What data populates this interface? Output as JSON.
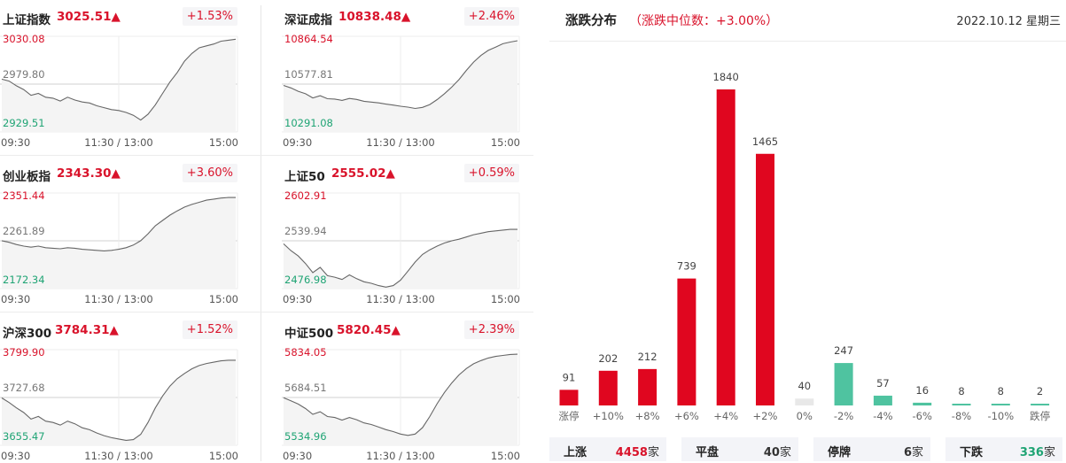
{
  "indices": [
    {
      "name": "上证指数",
      "value": "3025.51▲",
      "change": "+1.53%",
      "high": "3030.08",
      "mid": "2979.80",
      "low": "2929.51",
      "t_start": "09:30",
      "t_mid": "11:30 / 13:00",
      "t_end": "15:00"
    },
    {
      "name": "深证成指",
      "value": "10838.48▲",
      "change": "+2.46%",
      "high": "10864.54",
      "mid": "10577.81",
      "low": "10291.08",
      "t_start": "09:30",
      "t_mid": "11:30 / 13:00",
      "t_end": "15:00"
    },
    {
      "name": "创业板指",
      "value": "2343.30▲",
      "change": "+3.60%",
      "high": "2351.44",
      "mid": "2261.89",
      "low": "2172.34",
      "t_start": "09:30",
      "t_mid": "11:30 / 13:00",
      "t_end": "15:00"
    },
    {
      "name": "上证50",
      "value": "2555.02▲",
      "change": "+0.59%",
      "high": "2602.91",
      "mid": "2539.94",
      "low": "2476.98",
      "t_start": "09:30",
      "t_mid": "11:30 / 13:00",
      "t_end": "15:00"
    },
    {
      "name": "沪深300",
      "value": "3784.31▲",
      "change": "+1.52%",
      "high": "3799.90",
      "mid": "3727.68",
      "low": "3655.47",
      "t_start": "09:30",
      "t_mid": "11:30 / 13:00",
      "t_end": "15:00"
    },
    {
      "name": "中证500",
      "value": "5820.45▲",
      "change": "+2.39%",
      "high": "5834.05",
      "mid": "5684.51",
      "low": "5534.96",
      "t_start": "09:30",
      "t_mid": "11:30 / 13:00",
      "t_end": "15:00"
    }
  ],
  "distribution": {
    "title": "涨跌分布",
    "median_text": "（涨跌中位数：+3.00%）",
    "date": "2022.10.12 星期三"
  },
  "summary": [
    {
      "label": "上涨",
      "value": "4458",
      "unit": "家",
      "color": "#d9132b"
    },
    {
      "label": "平盘",
      "value": "40",
      "unit": "家",
      "color": "#333333"
    },
    {
      "label": "停牌",
      "value": "6",
      "unit": "家",
      "color": "#333333"
    },
    {
      "label": "下跌",
      "value": "336",
      "unit": "家",
      "color": "#1fa474"
    }
  ],
  "chart_data": [
    {
      "type": "bar",
      "categories": [
        "涨停",
        "+10%",
        "+8%",
        "+6%",
        "+4%",
        "+2%",
        "0%",
        "-2%",
        "-4%",
        "-6%",
        "-8%",
        "-10%",
        "跌停"
      ],
      "values": [
        91,
        202,
        212,
        739,
        1840,
        1465,
        40,
        247,
        57,
        16,
        8,
        8,
        2
      ],
      "colors": [
        "#e0061f",
        "#e0061f",
        "#e0061f",
        "#e0061f",
        "#e0061f",
        "#e0061f",
        "#e8e8e8",
        "#4fc3a0",
        "#4fc3a0",
        "#4fc3a0",
        "#4fc3a0",
        "#4fc3a0",
        "#4fc3a0"
      ],
      "ylim": [
        0,
        1840
      ],
      "grid": false
    },
    {
      "type": "line",
      "name": "上证指数",
      "ylim": [
        2929.51,
        3030.08
      ],
      "y": [
        2985,
        2983,
        2978,
        2974,
        2968,
        2970,
        2966,
        2965,
        2962,
        2966,
        2963,
        2961,
        2960,
        2957,
        2955,
        2953,
        2952,
        2950,
        2947,
        2942,
        2948,
        2958,
        2970,
        2982,
        2992,
        3004,
        3012,
        3018,
        3020,
        3022,
        3025,
        3026,
        3027
      ]
    },
    {
      "type": "line",
      "name": "深证成指",
      "ylim": [
        10291.08,
        10864.54
      ],
      "y": [
        10570,
        10555,
        10535,
        10520,
        10495,
        10508,
        10490,
        10488,
        10480,
        10492,
        10486,
        10475,
        10470,
        10465,
        10458,
        10452,
        10445,
        10440,
        10432,
        10438,
        10455,
        10485,
        10520,
        10560,
        10605,
        10660,
        10710,
        10750,
        10780,
        10800,
        10820,
        10830,
        10838
      ]
    },
    {
      "type": "line",
      "name": "创业板指",
      "ylim": [
        2172.34,
        2351.44
      ],
      "y": [
        2262,
        2259,
        2255,
        2252,
        2250,
        2252,
        2249,
        2248,
        2247,
        2249,
        2248,
        2246,
        2245,
        2244,
        2243,
        2244,
        2246,
        2249,
        2254,
        2262,
        2275,
        2290,
        2300,
        2310,
        2318,
        2325,
        2330,
        2334,
        2338,
        2340,
        2342,
        2343,
        2343
      ]
    },
    {
      "type": "line",
      "name": "上证50",
      "ylim": [
        2476.98,
        2602.91
      ],
      "y": [
        2536,
        2527,
        2520,
        2510,
        2498,
        2505,
        2494,
        2492,
        2489,
        2495,
        2490,
        2486,
        2484,
        2481,
        2479,
        2481,
        2488,
        2500,
        2512,
        2522,
        2528,
        2533,
        2537,
        2540,
        2542,
        2545,
        2548,
        2550,
        2552,
        2553,
        2554,
        2555,
        2555
      ]
    },
    {
      "type": "line",
      "name": "沪深300",
      "ylim": [
        3655.47,
        3799.9
      ],
      "y": [
        3727,
        3720,
        3712,
        3705,
        3695,
        3699,
        3692,
        3690,
        3686,
        3692,
        3688,
        3682,
        3679,
        3674,
        3670,
        3667,
        3665,
        3663,
        3664,
        3672,
        3690,
        3712,
        3730,
        3745,
        3756,
        3764,
        3771,
        3776,
        3779,
        3781,
        3783,
        3784,
        3784
      ]
    },
    {
      "type": "line",
      "name": "中证500",
      "ylim": [
        5534.96,
        5834.05
      ],
      "y": [
        5684,
        5674,
        5664,
        5650,
        5632,
        5640,
        5625,
        5622,
        5614,
        5622,
        5615,
        5605,
        5600,
        5592,
        5584,
        5578,
        5570,
        5566,
        5570,
        5590,
        5625,
        5665,
        5700,
        5730,
        5755,
        5775,
        5790,
        5800,
        5808,
        5813,
        5816,
        5819,
        5820
      ]
    }
  ]
}
